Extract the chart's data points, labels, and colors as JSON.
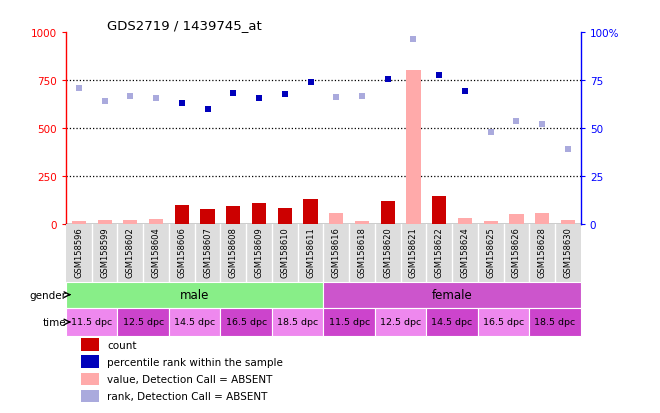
{
  "title": "GDS2719 / 1439745_at",
  "samples": [
    "GSM158596",
    "GSM158599",
    "GSM158602",
    "GSM158604",
    "GSM158606",
    "GSM158607",
    "GSM158608",
    "GSM158609",
    "GSM158610",
    "GSM158611",
    "GSM158616",
    "GSM158618",
    "GSM158620",
    "GSM158621",
    "GSM158622",
    "GSM158624",
    "GSM158625",
    "GSM158626",
    "GSM158628",
    "GSM158630"
  ],
  "count_values": [
    15,
    20,
    18,
    22,
    95,
    75,
    90,
    105,
    80,
    130,
    55,
    15,
    120,
    800,
    145,
    30,
    15,
    50,
    55,
    20
  ],
  "count_absent": [
    true,
    true,
    true,
    true,
    false,
    false,
    false,
    false,
    false,
    false,
    true,
    true,
    false,
    true,
    false,
    true,
    true,
    true,
    true,
    true
  ],
  "rank_values": [
    71,
    64,
    66.5,
    65.5,
    63,
    60,
    68,
    65.5,
    67.5,
    74,
    66,
    66.5,
    75.5,
    96.5,
    77.5,
    69.5,
    48,
    53.5,
    52,
    39
  ],
  "rank_absent": [
    true,
    true,
    true,
    true,
    false,
    false,
    false,
    false,
    false,
    false,
    true,
    true,
    false,
    true,
    false,
    false,
    true,
    true,
    true,
    true
  ],
  "ylim_left": [
    0,
    1000
  ],
  "ylim_right": [
    0,
    100
  ],
  "yticks_left": [
    0,
    250,
    500,
    750,
    1000
  ],
  "ytick_labels_left": [
    "0",
    "250",
    "500",
    "750",
    "1000"
  ],
  "yticks_right": [
    0,
    25,
    50,
    75,
    100
  ],
  "ytick_labels_right": [
    "0",
    "25",
    "50",
    "75",
    "100%"
  ],
  "color_count_present": "#cc0000",
  "color_count_absent": "#ffaaaa",
  "color_rank_present": "#0000bb",
  "color_rank_absent": "#aaaadd",
  "color_male": "#88ee88",
  "color_female": "#cc55cc",
  "color_time_light": "#ee88ee",
  "color_time_dark": "#cc44cc",
  "background_color": "#ffffff",
  "bar_width": 0.55,
  "time_groups": [
    [
      0,
      1,
      "11.5 dpc"
    ],
    [
      2,
      3,
      "12.5 dpc"
    ],
    [
      4,
      5,
      "14.5 dpc"
    ],
    [
      6,
      7,
      "16.5 dpc"
    ],
    [
      8,
      9,
      "18.5 dpc"
    ],
    [
      10,
      11,
      "11.5 dpc"
    ],
    [
      12,
      13,
      "12.5 dpc"
    ],
    [
      14,
      15,
      "14.5 dpc"
    ],
    [
      16,
      17,
      "16.5 dpc"
    ],
    [
      18,
      19,
      "18.5 dpc"
    ]
  ],
  "gender_groups": [
    [
      0,
      9,
      "male",
      "#88ee88"
    ],
    [
      10,
      19,
      "female",
      "#cc55cc"
    ]
  ]
}
